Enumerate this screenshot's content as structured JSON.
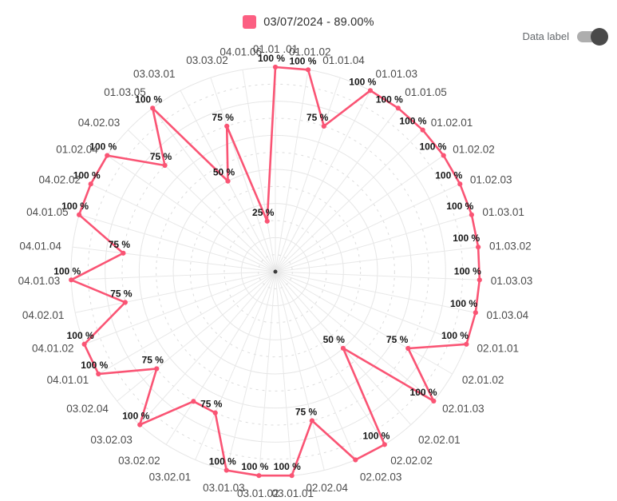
{
  "legend": {
    "label": "03/07/2024 - 89.00%",
    "swatch_color": "#FC5F82"
  },
  "toolbar": {
    "data_label_toggle": {
      "label": "Data label",
      "state": "on"
    }
  },
  "chart_data": {
    "type": "radar",
    "title": "",
    "unit": "%",
    "max": 100,
    "ring_count": 12,
    "grid": true,
    "legend_position": "top",
    "axis_order": "clockwise-from-top",
    "categories": [
      "01.01 .01",
      "01.01.02",
      "01.01.04",
      "01.01.03",
      "01.01.05",
      "01.02.01",
      "01.02.02",
      "01.02.03",
      "01.03.01",
      "01.03.02",
      "01.03.03",
      "01.03.04",
      "02.01.01",
      "02.01.02",
      "02.01.03",
      "02.02.01",
      "02.02.02",
      "02.02.03",
      "02.02.04",
      "03.01.01",
      "03.01.02",
      "03.01.03",
      "03.02.01",
      "03.02.02",
      "03.02.03",
      "03.02.04",
      "04.01.01",
      "04.01.02",
      "04.02.01",
      "04.01.03",
      "04.01.04",
      "04.01.05",
      "04.02.02",
      "01.02.04",
      "04.02.03",
      "01.03.05",
      "03.03.01",
      "03.03.02",
      "04.01.06"
    ],
    "series": [
      {
        "name": "03/07/2024 - 89.00%",
        "color": "#FA5474",
        "values": [
          100,
          100,
          75,
          100,
          100,
          100,
          100,
          100,
          100,
          100,
          100,
          100,
          100,
          75,
          100,
          50,
          100,
          100,
          75,
          100,
          100,
          100,
          75,
          75,
          100,
          75,
          100,
          100,
          75,
          100,
          75,
          100,
          100,
          100,
          75,
          100,
          50,
          75,
          25
        ]
      }
    ],
    "value_label_format": "{v} %",
    "value_labels_hidden": [
      "02.02.03",
      "03.02.02"
    ]
  }
}
